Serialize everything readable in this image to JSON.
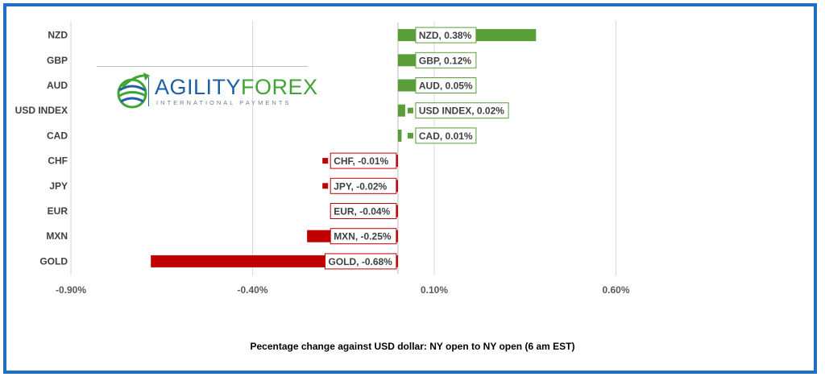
{
  "chart_data": {
    "type": "bar",
    "orientation": "horizontal",
    "categories": [
      "NZD",
      "GBP",
      "AUD",
      "USD INDEX",
      "CAD",
      "CHF",
      "JPY",
      "EUR",
      "MXN",
      "GOLD"
    ],
    "values": [
      0.38,
      0.12,
      0.05,
      0.02,
      0.01,
      -0.01,
      -0.02,
      -0.04,
      -0.25,
      -0.68
    ],
    "data_labels": [
      "NZD, 0.38%",
      "GBP, 0.12%",
      "AUD, 0.05%",
      "USD INDEX, 0.02%",
      "CAD, 0.01%",
      "CHF, -0.01%",
      "JPY, -0.02%",
      "EUR, -0.04%",
      "MXN, -0.25%",
      "GOLD, -0.68%"
    ],
    "xlim": [
      -0.9,
      1.1
    ],
    "xticks": [
      -0.9,
      -0.4,
      0.1,
      0.6
    ],
    "xtick_labels": [
      "-0.90%",
      "-0.40%",
      "0.10%",
      "0.60%"
    ],
    "xlabel": "Pecentage change against USD dollar:  NY open to NY open  (6 am EST)",
    "title": "",
    "grid": true,
    "colors": {
      "positive": "#5a9e3a",
      "negative": "#c00000",
      "frame": "#1f6fc4"
    }
  },
  "logo": {
    "text_main": "AGILITY",
    "text_accent": "FOREX",
    "tagline": "INTERNATIONAL PAYMENTS"
  }
}
